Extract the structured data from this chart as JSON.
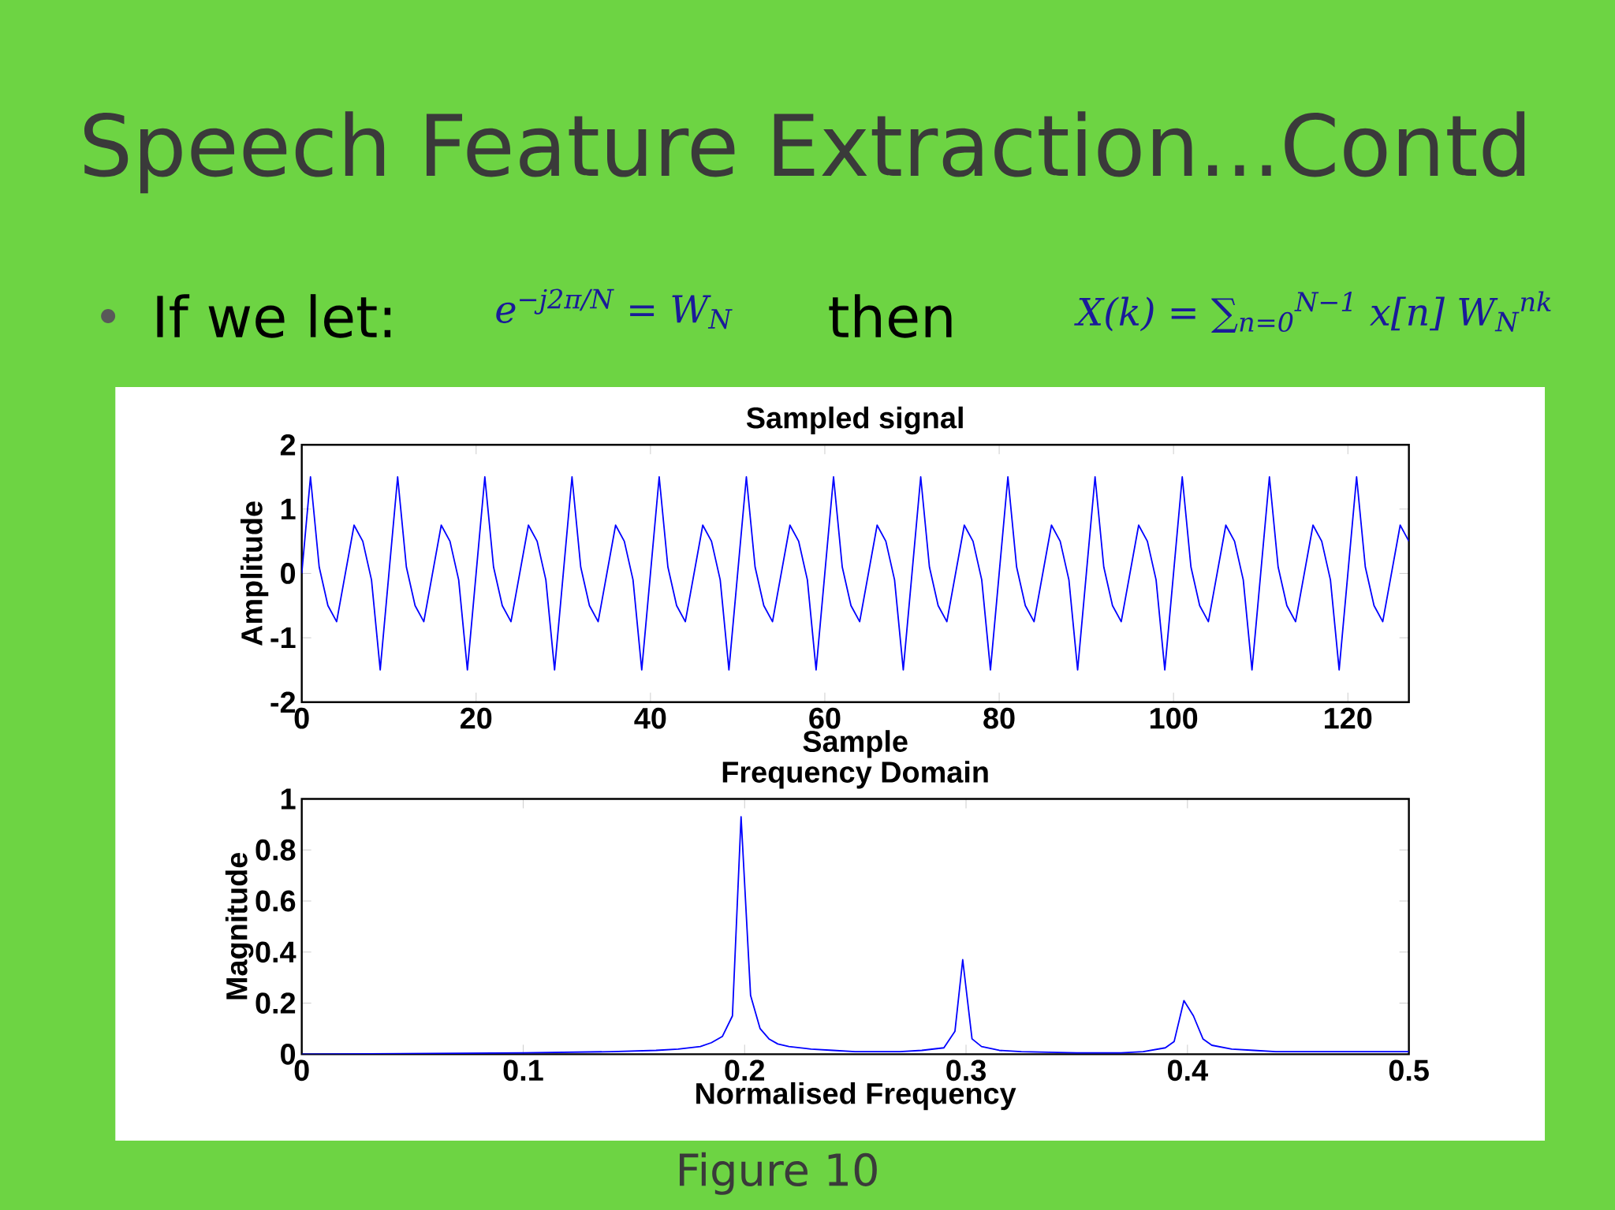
{
  "chart_data": [
    {
      "type": "line",
      "title": "Sampled signal",
      "xlabel": "Sample",
      "ylabel": "Amplitude",
      "color": "#0000ff",
      "x": [
        0,
        1,
        2,
        3,
        4,
        5,
        6,
        7,
        8,
        9,
        10,
        11,
        12,
        13,
        14,
        15,
        16,
        17,
        18,
        19,
        20,
        21,
        22,
        23,
        24,
        25,
        26,
        27,
        28,
        29,
        30,
        31,
        32,
        33,
        34,
        35,
        36,
        37,
        38,
        39,
        40,
        41,
        42,
        43,
        44,
        45,
        46,
        47,
        48,
        49,
        50,
        51,
        52,
        53,
        54,
        55,
        56,
        57,
        58,
        59,
        60,
        61,
        62,
        63,
        64,
        65,
        66,
        67,
        68,
        69,
        70,
        71,
        72,
        73,
        74,
        75,
        76,
        77,
        78,
        79,
        80,
        81,
        82,
        83,
        84,
        85,
        86,
        87,
        88,
        89,
        90,
        91,
        92,
        93,
        94,
        95,
        96,
        97,
        98,
        99,
        100,
        101,
        102,
        103,
        104,
        105,
        106,
        107,
        108,
        109,
        110,
        111,
        112,
        113,
        114,
        115,
        116,
        117,
        118,
        119,
        120,
        121,
        122,
        123,
        124,
        125,
        126,
        127
      ],
      "values": [
        0,
        1.5,
        0.1,
        -0.5,
        -0.75,
        0,
        0.75,
        0.5,
        -0.1,
        -1.5,
        0,
        1.5,
        0.1,
        -0.5,
        -0.75,
        0,
        0.75,
        0.5,
        -0.1,
        -1.5,
        0,
        1.5,
        0.1,
        -0.5,
        -0.75,
        0,
        0.75,
        0.5,
        -0.1,
        -1.5,
        0,
        1.5,
        0.1,
        -0.5,
        -0.75,
        0,
        0.75,
        0.5,
        -0.1,
        -1.5,
        0,
        1.5,
        0.1,
        -0.5,
        -0.75,
        0,
        0.75,
        0.5,
        -0.1,
        -1.5,
        0,
        1.5,
        0.1,
        -0.5,
        -0.75,
        0,
        0.75,
        0.5,
        -0.1,
        -1.5,
        0,
        1.5,
        0.1,
        -0.5,
        -0.75,
        0,
        0.75,
        0.5,
        -0.1,
        -1.5,
        0,
        1.5,
        0.1,
        -0.5,
        -0.75,
        0,
        0.75,
        0.5,
        -0.1,
        -1.5,
        0,
        1.5,
        0.1,
        -0.5,
        -0.75,
        0,
        0.75,
        0.5,
        -0.1,
        -1.5,
        0,
        1.5,
        0.1,
        -0.5,
        -0.75,
        0,
        0.75,
        0.5,
        -0.1,
        -1.5,
        0,
        1.5,
        0.1,
        -0.5,
        -0.75,
        0,
        0.75,
        0.5,
        -0.1,
        -1.5,
        0,
        1.5,
        0.1,
        -0.5,
        -0.75,
        0,
        0.75,
        0.5,
        -0.1,
        -1.5,
        0,
        1.5,
        0.1,
        -0.5,
        -0.75,
        0,
        0.75,
        0.5
      ],
      "xlim": [
        0,
        127
      ],
      "ylim": [
        -2,
        2
      ],
      "xticks": [
        0,
        20,
        40,
        60,
        80,
        100,
        120
      ],
      "yticks": [
        -2,
        -1,
        0,
        1,
        2
      ],
      "annotations": [
        "Speech Feature Extraction...Contd",
        "If we let:",
        "e$^{−j2π/N}$ = W$_{N}$",
        "then",
        "X(k) = ∑$_{n=0}$$^{N−1}$ x[n] W$_{N}$$^{nk}$",
        "Figure 10"
      ]
    },
    {
      "type": "line",
      "title": "Frequency Domain",
      "xlabel": "Normalised Frequency",
      "ylabel": "Magnitude",
      "color": "#0000ff",
      "x": [
        0,
        0.1,
        0.14,
        0.16,
        0.17,
        0.18,
        0.185,
        0.19,
        0.1945,
        0.1984,
        0.2027,
        0.207,
        0.211,
        0.215,
        0.22,
        0.23,
        0.24,
        0.25,
        0.27,
        0.28,
        0.29,
        0.295,
        0.2985,
        0.3027,
        0.307,
        0.315,
        0.325,
        0.35,
        0.37,
        0.38,
        0.39,
        0.394,
        0.3984,
        0.4027,
        0.407,
        0.411,
        0.42,
        0.43,
        0.44,
        0.5
      ],
      "values": [
        0,
        0.005,
        0.01,
        0.015,
        0.02,
        0.03,
        0.045,
        0.07,
        0.15,
        0.93,
        0.23,
        0.1,
        0.06,
        0.04,
        0.03,
        0.02,
        0.015,
        0.01,
        0.01,
        0.015,
        0.025,
        0.09,
        0.37,
        0.06,
        0.03,
        0.015,
        0.01,
        0.005,
        0.005,
        0.01,
        0.025,
        0.05,
        0.21,
        0.15,
        0.06,
        0.035,
        0.02,
        0.015,
        0.01,
        0.01
      ],
      "xlim": [
        0,
        0.5
      ],
      "ylim": [
        0,
        1
      ],
      "xticks": [
        0,
        0.1,
        0.2,
        0.3,
        0.4,
        0.5
      ],
      "yticks": [
        0,
        0.2,
        0.4,
        0.6,
        0.8,
        1
      ]
    }
  ]
}
